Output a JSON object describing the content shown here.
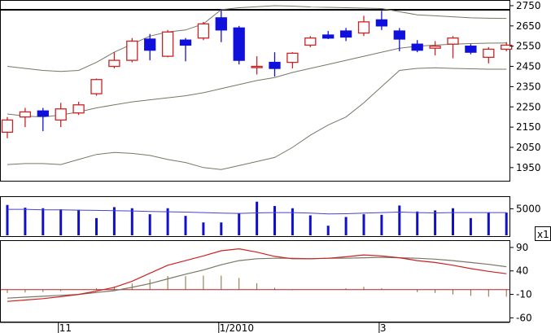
{
  "chart_data": [
    {
      "type": "candlestick",
      "panel": "price",
      "yticks": [
        1950,
        2050,
        2150,
        2250,
        2350,
        2450,
        2550,
        2650,
        2750
      ],
      "ylim": [
        1885,
        2770
      ],
      "colors": {
        "up": "#cc2222",
        "down": "#1010dd",
        "band": "#777766"
      },
      "candles": [
        {
          "o": 2125,
          "h": 2200,
          "l": 2095,
          "c": 2185
        },
        {
          "o": 2200,
          "h": 2245,
          "l": 2150,
          "c": 2225
        },
        {
          "o": 2230,
          "h": 2245,
          "l": 2130,
          "c": 2205
        },
        {
          "o": 2185,
          "h": 2270,
          "l": 2150,
          "c": 2240
        },
        {
          "o": 2220,
          "h": 2275,
          "l": 2210,
          "c": 2260
        },
        {
          "o": 2315,
          "h": 2390,
          "l": 2305,
          "c": 2385
        },
        {
          "o": 2450,
          "h": 2520,
          "l": 2440,
          "c": 2480
        },
        {
          "o": 2480,
          "h": 2590,
          "l": 2470,
          "c": 2575
        },
        {
          "o": 2585,
          "h": 2610,
          "l": 2480,
          "c": 2530
        },
        {
          "o": 2500,
          "h": 2630,
          "l": 2495,
          "c": 2620
        },
        {
          "o": 2580,
          "h": 2590,
          "l": 2475,
          "c": 2555
        },
        {
          "o": 2590,
          "h": 2670,
          "l": 2580,
          "c": 2660
        },
        {
          "o": 2690,
          "h": 2730,
          "l": 2570,
          "c": 2630
        },
        {
          "o": 2640,
          "h": 2650,
          "l": 2460,
          "c": 2480
        },
        {
          "o": 2450,
          "h": 2500,
          "l": 2410,
          "c": 2450
        },
        {
          "o": 2470,
          "h": 2520,
          "l": 2400,
          "c": 2440
        },
        {
          "o": 2470,
          "h": 2520,
          "l": 2440,
          "c": 2515
        },
        {
          "o": 2555,
          "h": 2600,
          "l": 2545,
          "c": 2590
        },
        {
          "o": 2605,
          "h": 2625,
          "l": 2585,
          "c": 2590
        },
        {
          "o": 2625,
          "h": 2640,
          "l": 2575,
          "c": 2595
        },
        {
          "o": 2615,
          "h": 2700,
          "l": 2600,
          "c": 2670
        },
        {
          "o": 2680,
          "h": 2725,
          "l": 2630,
          "c": 2650
        },
        {
          "o": 2625,
          "h": 2640,
          "l": 2525,
          "c": 2585
        },
        {
          "o": 2560,
          "h": 2580,
          "l": 2520,
          "c": 2530
        },
        {
          "o": 2540,
          "h": 2575,
          "l": 2505,
          "c": 2550
        },
        {
          "o": 2560,
          "h": 2600,
          "l": 2490,
          "c": 2590
        },
        {
          "o": 2550,
          "h": 2560,
          "l": 2510,
          "c": 2520
        },
        {
          "o": 2495,
          "h": 2545,
          "l": 2465,
          "c": 2535
        },
        {
          "o": 2535,
          "h": 2570,
          "l": 2525,
          "c": 2555
        }
      ],
      "bollinger": {
        "upper": [
          2450,
          2440,
          2430,
          2425,
          2430,
          2470,
          2520,
          2560,
          2600,
          2620,
          2630,
          2660,
          2730,
          2740,
          2745,
          2750,
          2748,
          2744,
          2742,
          2740,
          2738,
          2736,
          2720,
          2705,
          2700,
          2695,
          2690,
          2688,
          2687
        ],
        "middle": [
          2215,
          2205,
          2200,
          2210,
          2225,
          2245,
          2260,
          2275,
          2285,
          2295,
          2305,
          2320,
          2340,
          2360,
          2380,
          2395,
          2420,
          2440,
          2460,
          2480,
          2500,
          2520,
          2540,
          2550,
          2555,
          2560,
          2563,
          2565,
          2566
        ],
        "lower": [
          1965,
          1970,
          1970,
          1965,
          1990,
          2015,
          2025,
          2020,
          2010,
          1990,
          1975,
          1950,
          1940,
          1960,
          1980,
          2000,
          2050,
          2110,
          2160,
          2200,
          2270,
          2350,
          2430,
          2440,
          2443,
          2440,
          2438,
          2436,
          2436
        ]
      }
    },
    {
      "type": "bar",
      "panel": "volume",
      "yticks": [
        5000
      ],
      "ylim": [
        0,
        7000
      ],
      "unit_label": "x1",
      "colors": {
        "bar": "#1010cc",
        "line": "#4444cc"
      },
      "values": [
        5700,
        5200,
        5100,
        4900,
        4800,
        3300,
        5300,
        5100,
        4000,
        5100,
        3700,
        2500,
        2500,
        4200,
        6300,
        5500,
        5100,
        3800,
        1900,
        3500,
        4000,
        3900,
        5600,
        4500,
        4700,
        5100,
        3300,
        4300,
        4300
      ],
      "line": [
        4900,
        4900,
        4800,
        4800,
        4750,
        4700,
        4650,
        4600,
        4500,
        4450,
        4400,
        4300,
        4200,
        4150,
        4250,
        4300,
        4300,
        4200,
        4050,
        4100,
        4200,
        4300,
        4400,
        4300,
        4250,
        4300,
        4300,
        4300,
        4300
      ]
    },
    {
      "type": "line",
      "panel": "macd",
      "yticks": [
        90,
        40,
        -10,
        -60
      ],
      "ylim": [
        -68,
        102
      ],
      "colors": {
        "macd": "#cc2222",
        "signal": "#777766",
        "hist": "#8a6a3a",
        "zero": "#bb2222"
      },
      "macd": [
        -25,
        -22,
        -19,
        -15,
        -10,
        -3,
        5,
        18,
        35,
        52,
        62,
        72,
        83,
        87,
        80,
        71,
        66,
        66,
        67,
        70,
        74,
        72,
        68,
        62,
        58,
        52,
        45,
        39,
        34
      ],
      "signal": [
        -18,
        -16,
        -14,
        -12,
        -10,
        -6,
        -2,
        5,
        13,
        23,
        33,
        42,
        53,
        62,
        66,
        67,
        67,
        66,
        67,
        67,
        68,
        69,
        68,
        67,
        65,
        62,
        58,
        54,
        49
      ],
      "hist": [
        -7,
        -6,
        -5,
        -3,
        0,
        3,
        7,
        13,
        22,
        29,
        29,
        30,
        30,
        25,
        14,
        4,
        -1,
        0,
        0,
        3,
        6,
        3,
        0,
        -5,
        -7,
        -10,
        -13,
        -15,
        -15
      ]
    }
  ],
  "x_axis": {
    "labels": [
      {
        "text": "11",
        "index": 3
      },
      {
        "text": "1/2010",
        "index": 12
      },
      {
        "text": "3",
        "index": 21
      }
    ]
  }
}
